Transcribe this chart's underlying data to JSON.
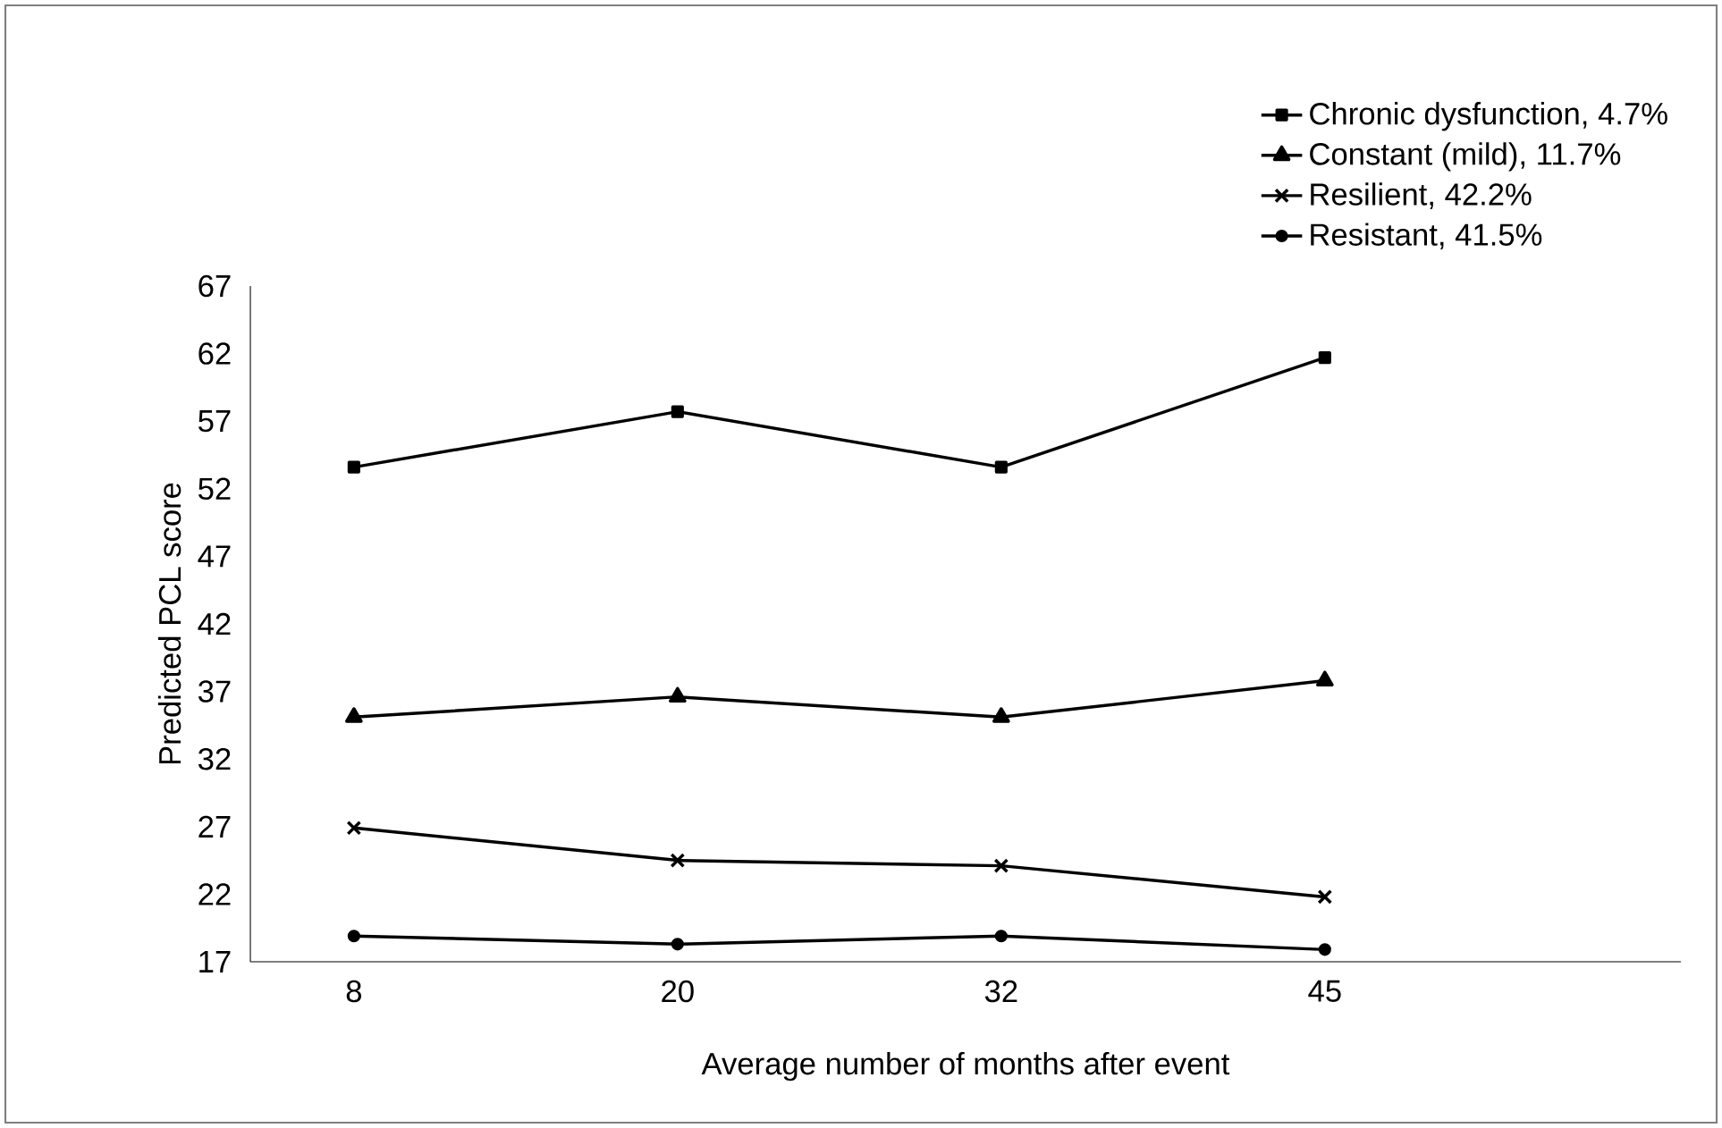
{
  "chart_data": {
    "type": "line",
    "xlabel": "Average number of months after event",
    "ylabel": "Predicted PCL score",
    "categories": [
      "8",
      "20",
      "32",
      "45"
    ],
    "series": [
      {
        "name": "Chronic dysfunction, 4.7%",
        "color": "#000000",
        "marker": "square",
        "values": [
          53.6,
          57.7,
          53.6,
          61.7
        ]
      },
      {
        "name": "Constant (mild), 11.7%",
        "color": "#000000",
        "marker": "triangle",
        "values": [
          35.1,
          36.6,
          35.1,
          37.8
        ]
      },
      {
        "name": "Resilient, 42.2%",
        "color": "#000000",
        "marker": "cross",
        "values": [
          26.9,
          24.5,
          24.1,
          21.8
        ]
      },
      {
        "name": "Resistant, 41.5%",
        "color": "#000000",
        "marker": "circle",
        "values": [
          18.9,
          18.3,
          18.9,
          17.9
        ]
      }
    ],
    "ylim": [
      17,
      67
    ],
    "yticks": [
      17,
      22,
      27,
      32,
      37,
      42,
      47,
      52,
      57,
      62,
      67
    ],
    "grid": false,
    "legend": "top right",
    "line_style": "solid"
  }
}
